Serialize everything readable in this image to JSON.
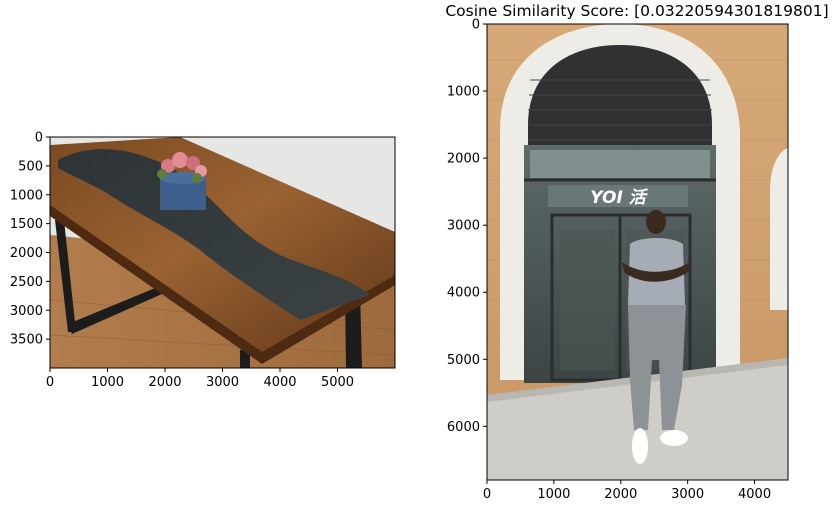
{
  "chart_data": [
    {
      "type": "image",
      "title": "",
      "image_content": "wooden live-edge river table with dark resin center, black metal legs, and a small blue pot of pink flowers",
      "xlim": [
        0,
        6000
      ],
      "ylim": [
        4000,
        0
      ],
      "xticks": [
        0,
        1000,
        2000,
        3000,
        4000,
        5000
      ],
      "yticks": [
        0,
        500,
        1000,
        1500,
        2000,
        2500,
        3000,
        3500
      ]
    },
    {
      "type": "image",
      "title": "Cosine Similarity Score: [0.03220594301819801]",
      "image_content": "man standing with arms crossed in front of a brick building with an arched glass storefront and a YOI sign",
      "storefront_sign": "YOI 活",
      "xlim": [
        0,
        4500
      ],
      "ylim": [
        6800,
        0
      ],
      "xticks": [
        0,
        1000,
        2000,
        3000,
        4000
      ],
      "yticks": [
        0,
        1000,
        2000,
        3000,
        4000,
        5000,
        6000
      ]
    }
  ]
}
